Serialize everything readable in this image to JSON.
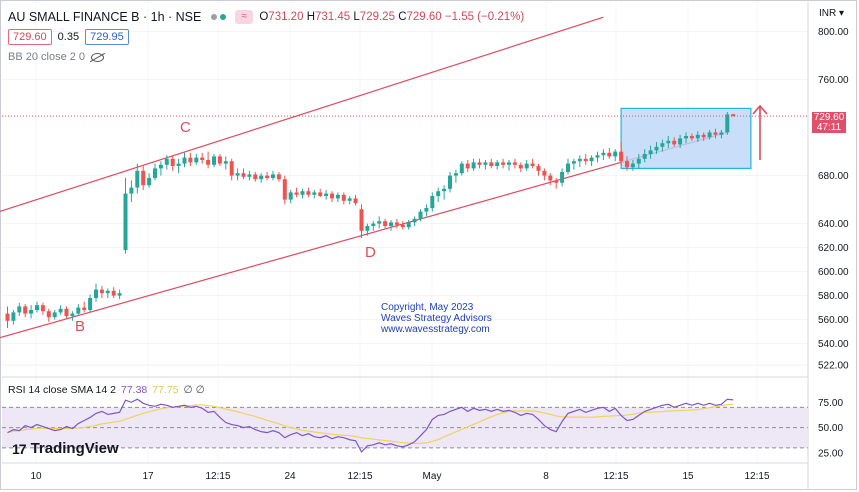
{
  "header": {
    "title": "AU SMALL FINANCE B · 1h · NSE",
    "dot_colors": [
      "#9e9e9e",
      "#26a69a"
    ],
    "wave_chip": "≈",
    "ohlc": {
      "o_label": "O",
      "o": "731.20",
      "h_label": "H",
      "h": "731.45",
      "l_label": "L",
      "l": "729.25",
      "c_label": "C",
      "c": "729.60",
      "change": "−1.55 (−0.21%)"
    }
  },
  "price_row": {
    "bid": "729.60",
    "spread": "0.35",
    "ask": "729.95"
  },
  "bb_legend": {
    "text": "BB 20 close 2 0",
    "icon": "eye-off-icon"
  },
  "rsi_legend": {
    "name": "RSI 14 close SMA 14 2",
    "rsi": "77.38",
    "sma": "77.75",
    "extra": "∅ ∅"
  },
  "brand": {
    "name": "TradingView",
    "mark": "17"
  },
  "copyright": [
    "Copyright, May 2023",
    "Waves Strategy Advisors",
    "www.wavesstrategy.com"
  ],
  "price_axis": {
    "currency": "INR",
    "ticks": [
      "800.00",
      "760.00",
      "680.00",
      "640.00",
      "620.00",
      "600.00",
      "580.00",
      "560.00",
      "540.00",
      "522.00"
    ],
    "last_price": "729.60",
    "countdown": "47:11"
  },
  "rsi_axis": {
    "ticks": [
      "75.00",
      "50.00",
      "25.00"
    ]
  },
  "time_axis": {
    "ticks": [
      "10",
      "17",
      "12:15",
      "24",
      "12:15",
      "May",
      "8",
      "12:15",
      "15",
      "12:15"
    ]
  },
  "wave_labels": [
    "B",
    "C",
    "D"
  ],
  "colors": {
    "up": "#26a69a",
    "down": "#ef5350",
    "channel": "#e04a5c",
    "box_fill": "#bcd7f7",
    "box_stroke": "#21b9d6",
    "rsi": "#7e57c2",
    "rsi_sma": "#f1d35b",
    "rsi_band": "#ede7f6"
  },
  "chart_data": {
    "type": "candlestick",
    "candles": [
      [
        565,
        571,
        553,
        559
      ],
      [
        559,
        568,
        556,
        566
      ],
      [
        566,
        574,
        563,
        571
      ],
      [
        571,
        573,
        562,
        565
      ],
      [
        565,
        572,
        561,
        568
      ],
      [
        568,
        575,
        566,
        572
      ],
      [
        572,
        574,
        564,
        567
      ],
      [
        567,
        569,
        558,
        562
      ],
      [
        562,
        568,
        560,
        566
      ],
      [
        566,
        572,
        564,
        569
      ],
      [
        569,
        571,
        561,
        563
      ],
      [
        563,
        567,
        559,
        565
      ],
      [
        565,
        573,
        563,
        570
      ],
      [
        570,
        575,
        566,
        568
      ],
      [
        568,
        581,
        566,
        578
      ],
      [
        578,
        590,
        575,
        585
      ],
      [
        585,
        588,
        578,
        582
      ],
      [
        582,
        586,
        578,
        584
      ],
      [
        584,
        587,
        578,
        580
      ],
      [
        580,
        585,
        577,
        582
      ],
      [
        618,
        678,
        615,
        665
      ],
      [
        665,
        676,
        658,
        670
      ],
      [
        670,
        690,
        665,
        684
      ],
      [
        684,
        688,
        668,
        672
      ],
      [
        672,
        682,
        670,
        678
      ],
      [
        678,
        690,
        676,
        686
      ],
      [
        686,
        692,
        680,
        689
      ],
      [
        689,
        697,
        685,
        694
      ],
      [
        694,
        697,
        684,
        688
      ],
      [
        688,
        694,
        682,
        690
      ],
      [
        690,
        699,
        687,
        695
      ],
      [
        695,
        699,
        688,
        691
      ],
      [
        691,
        698,
        689,
        695
      ],
      [
        695,
        699,
        690,
        693
      ],
      [
        693,
        700,
        686,
        689
      ],
      [
        689,
        698,
        687,
        696
      ],
      [
        696,
        698,
        688,
        690
      ],
      [
        690,
        696,
        685,
        692
      ],
      [
        692,
        694,
        676,
        680
      ],
      [
        680,
        686,
        676,
        682
      ],
      [
        682,
        686,
        677,
        679
      ],
      [
        679,
        684,
        676,
        681
      ],
      [
        681,
        683,
        675,
        677
      ],
      [
        677,
        682,
        674,
        680
      ],
      [
        680,
        683,
        676,
        678
      ],
      [
        678,
        684,
        676,
        681
      ],
      [
        681,
        683,
        675,
        677
      ],
      [
        677,
        680,
        656,
        660
      ],
      [
        660,
        668,
        657,
        666
      ],
      [
        666,
        670,
        662,
        664
      ],
      [
        664,
        669,
        661,
        667
      ],
      [
        667,
        670,
        662,
        664
      ],
      [
        664,
        668,
        661,
        666
      ],
      [
        666,
        669,
        662,
        663
      ],
      [
        663,
        668,
        660,
        665
      ],
      [
        665,
        667,
        658,
        661
      ],
      [
        661,
        666,
        658,
        664
      ],
      [
        664,
        666,
        656,
        659
      ],
      [
        659,
        663,
        656,
        661
      ],
      [
        661,
        664,
        655,
        657
      ],
      [
        652,
        656,
        628,
        634
      ],
      [
        634,
        640,
        630,
        638
      ],
      [
        638,
        642,
        634,
        640
      ],
      [
        640,
        646,
        636,
        642
      ],
      [
        642,
        644,
        636,
        638
      ],
      [
        638,
        643,
        634,
        641
      ],
      [
        641,
        644,
        636,
        639
      ],
      [
        639,
        642,
        635,
        637
      ],
      [
        637,
        643,
        635,
        641
      ],
      [
        641,
        646,
        638,
        644
      ],
      [
        644,
        652,
        642,
        650
      ],
      [
        650,
        656,
        646,
        653
      ],
      [
        653,
        666,
        650,
        663
      ],
      [
        663,
        670,
        658,
        667
      ],
      [
        667,
        672,
        660,
        669
      ],
      [
        669,
        683,
        666,
        680
      ],
      [
        680,
        685,
        674,
        682
      ],
      [
        682,
        692,
        680,
        690
      ],
      [
        690,
        693,
        683,
        686
      ],
      [
        686,
        694,
        684,
        691
      ],
      [
        691,
        694,
        686,
        689
      ],
      [
        689,
        693,
        685,
        691
      ],
      [
        691,
        694,
        686,
        688
      ],
      [
        688,
        693,
        685,
        691
      ],
      [
        691,
        694,
        686,
        689
      ],
      [
        689,
        693,
        684,
        691
      ],
      [
        691,
        694,
        686,
        689
      ],
      [
        689,
        691,
        683,
        686
      ],
      [
        686,
        693,
        684,
        690
      ],
      [
        690,
        694,
        686,
        688
      ],
      [
        688,
        690,
        680,
        684
      ],
      [
        684,
        686,
        676,
        680
      ],
      [
        680,
        682,
        672,
        676
      ],
      [
        676,
        678,
        669,
        674
      ],
      [
        674,
        686,
        671,
        683
      ],
      [
        683,
        694,
        681,
        690
      ],
      [
        690,
        694,
        685,
        692
      ],
      [
        692,
        697,
        687,
        694
      ],
      [
        694,
        698,
        689,
        692
      ],
      [
        692,
        697,
        688,
        695
      ],
      [
        695,
        700,
        691,
        697
      ],
      [
        697,
        702,
        693,
        699
      ],
      [
        699,
        703,
        694,
        696
      ],
      [
        696,
        702,
        692,
        700
      ],
      [
        700,
        708,
        688,
        692
      ],
      [
        692,
        696,
        684,
        687
      ],
      [
        687,
        693,
        684,
        690
      ],
      [
        690,
        698,
        686,
        694
      ],
      [
        694,
        702,
        691,
        698
      ],
      [
        698,
        705,
        694,
        701
      ],
      [
        701,
        708,
        698,
        704
      ],
      [
        704,
        710,
        700,
        707
      ],
      [
        707,
        713,
        703,
        709
      ],
      [
        709,
        712,
        704,
        706
      ],
      [
        706,
        714,
        703,
        711
      ],
      [
        711,
        716,
        707,
        713
      ],
      [
        713,
        715,
        709,
        711
      ],
      [
        711,
        717,
        708,
        714
      ],
      [
        714,
        716,
        709,
        712
      ],
      [
        712,
        718,
        710,
        716
      ],
      [
        716,
        719,
        711,
        714
      ],
      [
        714,
        718,
        711,
        716
      ],
      [
        716,
        733,
        714,
        731
      ],
      [
        731.2,
        731.45,
        729.25,
        729.6
      ]
    ],
    "rsi": [
      45,
      48,
      47,
      52,
      50,
      53,
      51,
      49,
      47,
      48,
      51,
      49,
      54,
      57,
      60,
      64,
      66,
      63,
      64,
      65,
      77,
      75,
      78,
      74,
      72,
      71,
      73,
      72,
      70,
      71,
      72,
      70,
      71,
      69,
      65,
      66,
      60,
      55,
      53,
      52,
      50,
      51,
      48,
      46,
      45,
      47,
      45,
      40,
      43,
      45,
      42,
      44,
      41,
      40,
      42,
      39,
      41,
      40,
      38,
      37,
      26,
      32,
      33,
      35,
      33,
      34,
      32,
      31,
      33,
      36,
      42,
      48,
      58,
      62,
      63,
      66,
      68,
      70,
      66,
      69,
      67,
      68,
      66,
      68,
      66,
      67,
      65,
      62,
      64,
      63,
      58,
      52,
      48,
      46,
      56,
      64,
      66,
      68,
      65,
      67,
      69,
      70,
      66,
      69,
      62,
      57,
      58,
      62,
      66,
      68,
      70,
      72,
      73,
      70,
      72,
      74,
      72,
      74,
      72,
      74,
      72,
      73,
      78,
      77.38
    ],
    "channel": {
      "upper_start": {
        "bar": -2,
        "price": 649
      },
      "upper_end": {
        "bar": 101,
        "price": 812
      },
      "lower_start": {
        "bar": -2,
        "price": 544
      },
      "lower_end": {
        "bar": 122,
        "price": 716
      }
    },
    "box": {
      "bar_start": 104,
      "bar_end": 126,
      "price_low": 686,
      "price_high": 736
    },
    "ylim": [
      518,
      818
    ],
    "rsi_ylim": [
      18,
      95
    ],
    "rsi_bands": [
      70,
      50,
      30
    ]
  }
}
